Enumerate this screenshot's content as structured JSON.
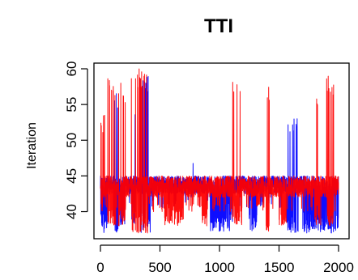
{
  "chart_data": {
    "type": "line",
    "title": "TTI",
    "xlabel": "",
    "ylabel": "Iteration",
    "xlim": [
      0,
      2000
    ],
    "ylim": [
      37,
      60
    ],
    "x_ticks": [
      "0",
      "500",
      "1000",
      "1500",
      "2000"
    ],
    "y_ticks": [
      "40",
      "45",
      "50",
      "55",
      "60"
    ],
    "grid": false,
    "series": [
      {
        "color": "#0000ff",
        "baseline_band": [
          42.5,
          45
        ],
        "segments": [
          {
            "x": [
              0,
              60
            ],
            "y_low": 37,
            "y_high": 44
          },
          {
            "x": [
              110,
              150
            ],
            "y_low": 37,
            "y_high": 57.5
          },
          {
            "x": [
              150,
              210
            ],
            "y_low": 38,
            "y_high": 44
          },
          {
            "x": [
              260,
              300
            ],
            "y_low": 38,
            "y_high": 54.5
          },
          {
            "x": [
              330,
              420
            ],
            "y_low": 37,
            "y_high": 59
          },
          {
            "x": [
              760,
              800
            ],
            "y_low": 42,
            "y_high": 49
          },
          {
            "x": [
              920,
              1110
            ],
            "y_low": 37,
            "y_high": 44
          },
          {
            "x": [
              1250,
              1320
            ],
            "y_low": 37,
            "y_high": 44
          },
          {
            "x": [
              1560,
              1660
            ],
            "y_low": 37,
            "y_high": 54
          },
          {
            "x": [
              1700,
              2000
            ],
            "y_low": 37,
            "y_high": 44
          }
        ]
      },
      {
        "color": "#ff0000",
        "baseline_band": [
          42,
          45
        ],
        "segments": [
          {
            "x": [
              0,
              40
            ],
            "y_low": 40,
            "y_high": 54
          },
          {
            "x": [
              60,
              130
            ],
            "y_low": 38,
            "y_high": 59
          },
          {
            "x": [
              150,
              210
            ],
            "y_low": 38,
            "y_high": 58
          },
          {
            "x": [
              260,
              400
            ],
            "y_low": 37,
            "y_high": 60
          },
          {
            "x": [
              540,
              700
            ],
            "y_low": 38,
            "y_high": 44
          },
          {
            "x": [
              850,
              900
            ],
            "y_low": 38,
            "y_high": 44
          },
          {
            "x": [
              1100,
              1190
            ],
            "y_low": 38,
            "y_high": 59.5
          },
          {
            "x": [
              1390,
              1420
            ],
            "y_low": 37,
            "y_high": 58
          },
          {
            "x": [
              1500,
              1560
            ],
            "y_low": 38,
            "y_high": 44
          },
          {
            "x": [
              1800,
              1850
            ],
            "y_low": 38,
            "y_high": 56
          },
          {
            "x": [
              1900,
              1960
            ],
            "y_low": 38,
            "y_high": 59
          }
        ]
      }
    ]
  }
}
